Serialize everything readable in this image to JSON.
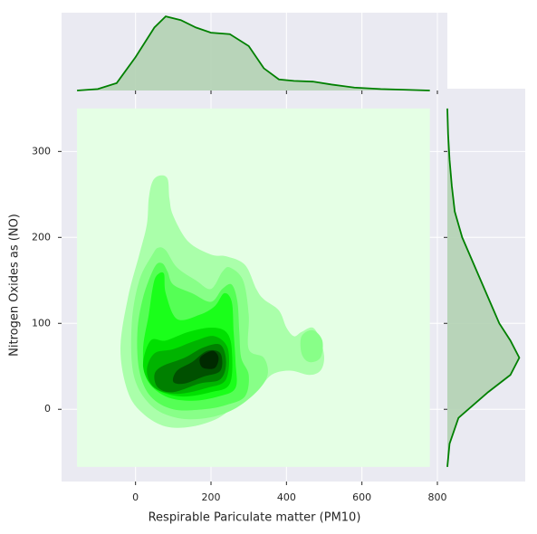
{
  "chart_data": {
    "type": "kde_joint",
    "xlabel": "Respirable Pariculate matter (PM10)",
    "ylabel": "Nitrogen Oxides as (NO)",
    "xlim": [
      -196,
      800
    ],
    "ylim": [
      -84,
      373
    ],
    "xticks": [
      0,
      200,
      400,
      600,
      800
    ],
    "yticks": [
      0,
      100,
      200,
      300
    ],
    "grid": true,
    "color": "#008000",
    "fill_color": "#b3d1b3",
    "background": "#e5ffe5",
    "support": {
      "x": [
        -155,
        780
      ],
      "y": [
        -67,
        350
      ]
    },
    "density_lim": [
      0,
      1.05
    ],
    "x_marginal": {
      "x": [
        -155,
        -100,
        -50,
        0,
        50,
        80,
        120,
        160,
        200,
        250,
        300,
        340,
        380,
        420,
        470,
        520,
        580,
        650,
        780
      ],
      "density": [
        0,
        0.02,
        0.1,
        0.45,
        0.85,
        1.0,
        0.95,
        0.85,
        0.78,
        0.76,
        0.6,
        0.3,
        0.15,
        0.13,
        0.12,
        0.08,
        0.04,
        0.02,
        0
      ]
    },
    "y_marginal": {
      "y": [
        -67,
        -40,
        -10,
        20,
        40,
        60,
        80,
        100,
        120,
        150,
        180,
        200,
        230,
        260,
        290,
        320,
        350
      ],
      "density": [
        0,
        0.03,
        0.15,
        0.55,
        0.85,
        0.97,
        0.85,
        0.7,
        0.6,
        0.45,
        0.3,
        0.2,
        0.1,
        0.06,
        0.03,
        0.01,
        0
      ]
    },
    "contours": [
      {
        "color": "#aaffaa",
        "x": [
          45,
          65,
          85,
          90,
          100,
          140,
          200,
          240,
          290,
          320,
          340,
          380,
          400,
          420,
          440,
          470,
          490,
          500,
          490,
          460,
          410,
          360,
          320,
          280,
          220,
          150,
          80,
          20,
          -20,
          -40,
          -20,
          10,
          30,
          35
        ],
        "y": [
          265,
          272,
          268,
          245,
          225,
          195,
          180,
          178,
          168,
          140,
          128,
          115,
          95,
          85,
          90,
          95,
          80,
          60,
          45,
          40,
          45,
          40,
          20,
          10,
          -10,
          -20,
          -20,
          -5,
          20,
          70,
          130,
          180,
          215,
          245
        ]
      },
      {
        "color": "#88ff88",
        "x": [
          45,
          60,
          80,
          110,
          160,
          200,
          230,
          250,
          285,
          300,
          300,
          340,
          350,
          320,
          260,
          190,
          110,
          40,
          -5,
          -10,
          10
        ],
        "y": [
          180,
          188,
          185,
          165,
          150,
          140,
          160,
          165,
          150,
          110,
          70,
          60,
          40,
          20,
          0,
          -10,
          -10,
          5,
          40,
          100,
          150
        ]
      },
      {
        "color": "#88ff88",
        "x": [
          440,
          470,
          495,
          490,
          460,
          440
        ],
        "y": [
          85,
          92,
          80,
          60,
          55,
          65
        ]
      },
      {
        "color": "#55ff55",
        "x": [
          50,
          70,
          85,
          100,
          150,
          200,
          230,
          255,
          270,
          275,
          280,
          300,
          290,
          240,
          180,
          100,
          40,
          10,
          5,
          20
        ],
        "y": [
          165,
          170,
          160,
          145,
          135,
          125,
          140,
          145,
          125,
          90,
          60,
          40,
          15,
          5,
          0,
          0,
          15,
          45,
          90,
          130
        ]
      },
      {
        "color": "#1aff1a",
        "x": [
          55,
          75,
          80,
          110,
          170,
          210,
          235,
          255,
          260,
          265,
          265,
          220,
          150,
          80,
          30,
          20,
          35,
          45
        ],
        "y": [
          155,
          158,
          135,
          105,
          110,
          120,
          135,
          125,
          90,
          55,
          25,
          15,
          10,
          15,
          35,
          70,
          110,
          140
        ]
      },
      {
        "color": "#00e000",
        "x": [
          40,
          80,
          140,
          200,
          240,
          255,
          250,
          200,
          120,
          50,
          20
        ],
        "y": [
          80,
          80,
          90,
          95,
          90,
          70,
          30,
          20,
          15,
          25,
          50
        ]
      },
      {
        "color": "#00b400",
        "x": [
          50,
          100,
          160,
          210,
          245,
          240,
          190,
          110,
          50,
          30
        ],
        "y": [
          65,
          70,
          80,
          85,
          70,
          35,
          25,
          18,
          25,
          45
        ]
      },
      {
        "color": "#008000",
        "x": [
          70,
          130,
          180,
          225,
          240,
          225,
          170,
          100,
          60,
          50
        ],
        "y": [
          50,
          60,
          72,
          75,
          55,
          35,
          30,
          20,
          25,
          40
        ]
      },
      {
        "color": "#005000",
        "x": [
          110,
          150,
          190,
          225,
          225,
          180,
          130,
          100
        ],
        "y": [
          45,
          55,
          68,
          65,
          45,
          38,
          30,
          32
        ]
      },
      {
        "color": "#002a00",
        "x": [
          175,
          205,
          220,
          210,
          180,
          170
        ],
        "y": [
          62,
          68,
          60,
          48,
          48,
          55
        ]
      }
    ]
  }
}
